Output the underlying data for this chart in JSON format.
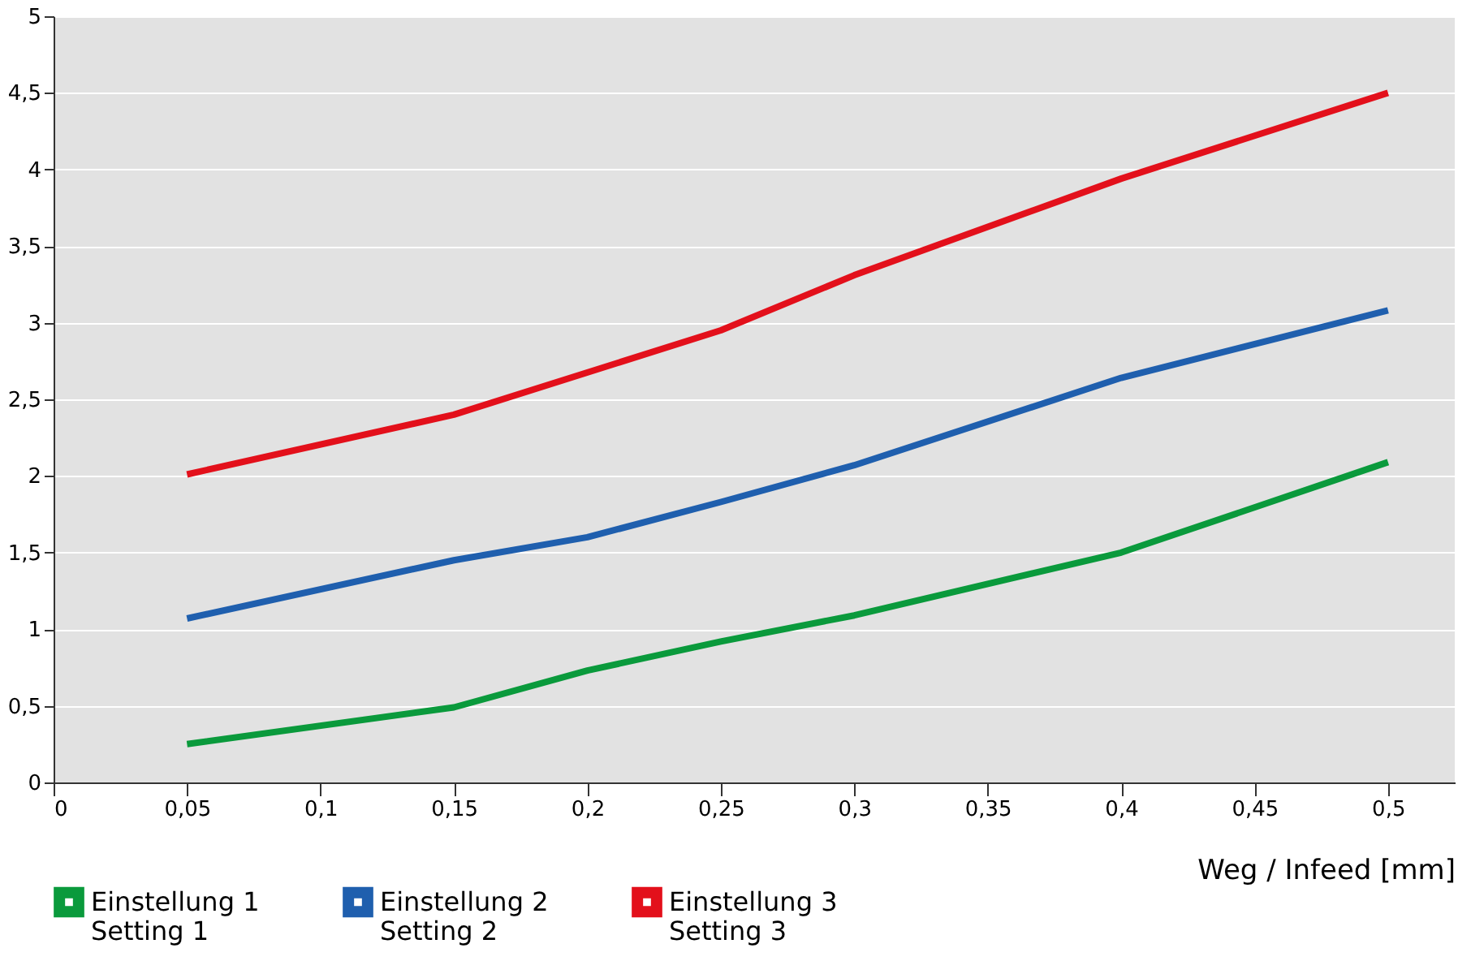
{
  "chart_data": {
    "type": "line",
    "xlabel": "Weg / Infeed [mm]",
    "x": [
      0.05,
      0.15,
      0.2,
      0.25,
      0.3,
      0.4,
      0.5
    ],
    "series": [
      {
        "name": "Einstellung 1\nSetting 1",
        "color": "#0a9a3c",
        "values": [
          0.25,
          0.49,
          0.73,
          0.92,
          1.09,
          1.5,
          2.09
        ]
      },
      {
        "name": "Einstellung 2\nSetting 2",
        "color": "#1f5fae",
        "values": [
          1.07,
          1.45,
          1.6,
          1.83,
          2.07,
          2.64,
          3.08
        ]
      },
      {
        "name": "Einstellung 3\nSetting 3",
        "color": "#e3101b",
        "x": [
          0.05,
          0.15,
          0.25,
          0.3,
          0.4,
          0.5
        ],
        "values": [
          2.01,
          2.4,
          2.95,
          3.31,
          3.94,
          4.5
        ]
      }
    ],
    "xlim": [
      0,
      0.525
    ],
    "xticks": [
      0,
      {
        "value": 0.05,
        "label": "0,05"
      },
      {
        "value": 0.1,
        "label": "0,1"
      },
      {
        "value": 0.15,
        "label": "0,15"
      },
      {
        "value": 0.2,
        "label": "0,2"
      },
      {
        "value": 0.25,
        "label": "0,25"
      },
      {
        "value": 0.3,
        "label": "0,3"
      },
      {
        "value": 0.35,
        "label": "0,35"
      },
      {
        "value": 0.4,
        "label": "0,4"
      },
      {
        "value": 0.45,
        "label": "0,45"
      },
      {
        "value": 0.5,
        "label": "0,5"
      }
    ],
    "ylim": [
      0,
      5
    ],
    "yticks": [
      0,
      {
        "value": 0.5,
        "label": "0,5"
      },
      1,
      {
        "value": 1.5,
        "label": "1,5"
      },
      2,
      {
        "value": 2.5,
        "label": "2,5"
      },
      3,
      {
        "value": 3.5,
        "label": "3,5"
      },
      4,
      {
        "value": 4.5,
        "label": "4,5"
      },
      5
    ],
    "grid": "y",
    "legend": "bottom",
    "marker": "none",
    "line_style": "solid"
  }
}
